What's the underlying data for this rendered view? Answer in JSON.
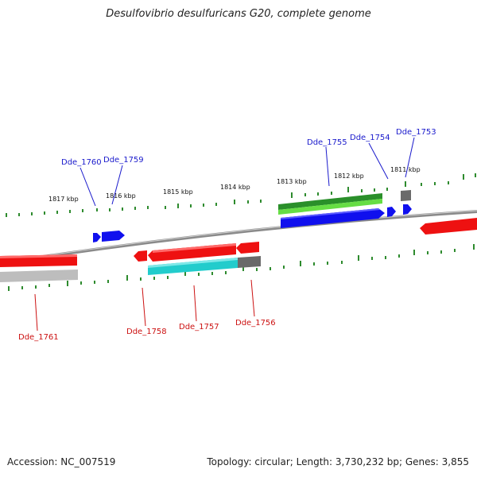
{
  "title": "Desulfovibrio desulfuricans G20, complete genome",
  "footer": {
    "accession": "Accession: NC_007519",
    "summary": "Topology: circular; Length: 3,730,232 bp; Genes: 3,855"
  },
  "colors": {
    "backbone": "#808080",
    "tick": "#2e8b2e",
    "label_top": "#1a1acc",
    "label_bottom": "#cc1111",
    "red": "#ee1111",
    "blue": "#1010ee",
    "green": "#33aa33",
    "cyan": "#22cccc",
    "grey": "#777777",
    "lightgrey": "#bdbdbd"
  },
  "scale_labels": [
    "1817 kbp",
    "1816 kbp",
    "1815 kbp",
    "1814 kbp",
    "1813 kbp",
    "1812 kbp",
    "1811 kbp"
  ],
  "genes_top": [
    "Dde_1760",
    "Dde_1759",
    "Dde_1755",
    "Dde_1754",
    "Dde_1753"
  ],
  "genes_bottom": [
    "Dde_1761",
    "Dde_1758",
    "Dde_1757",
    "Dde_1756"
  ]
}
